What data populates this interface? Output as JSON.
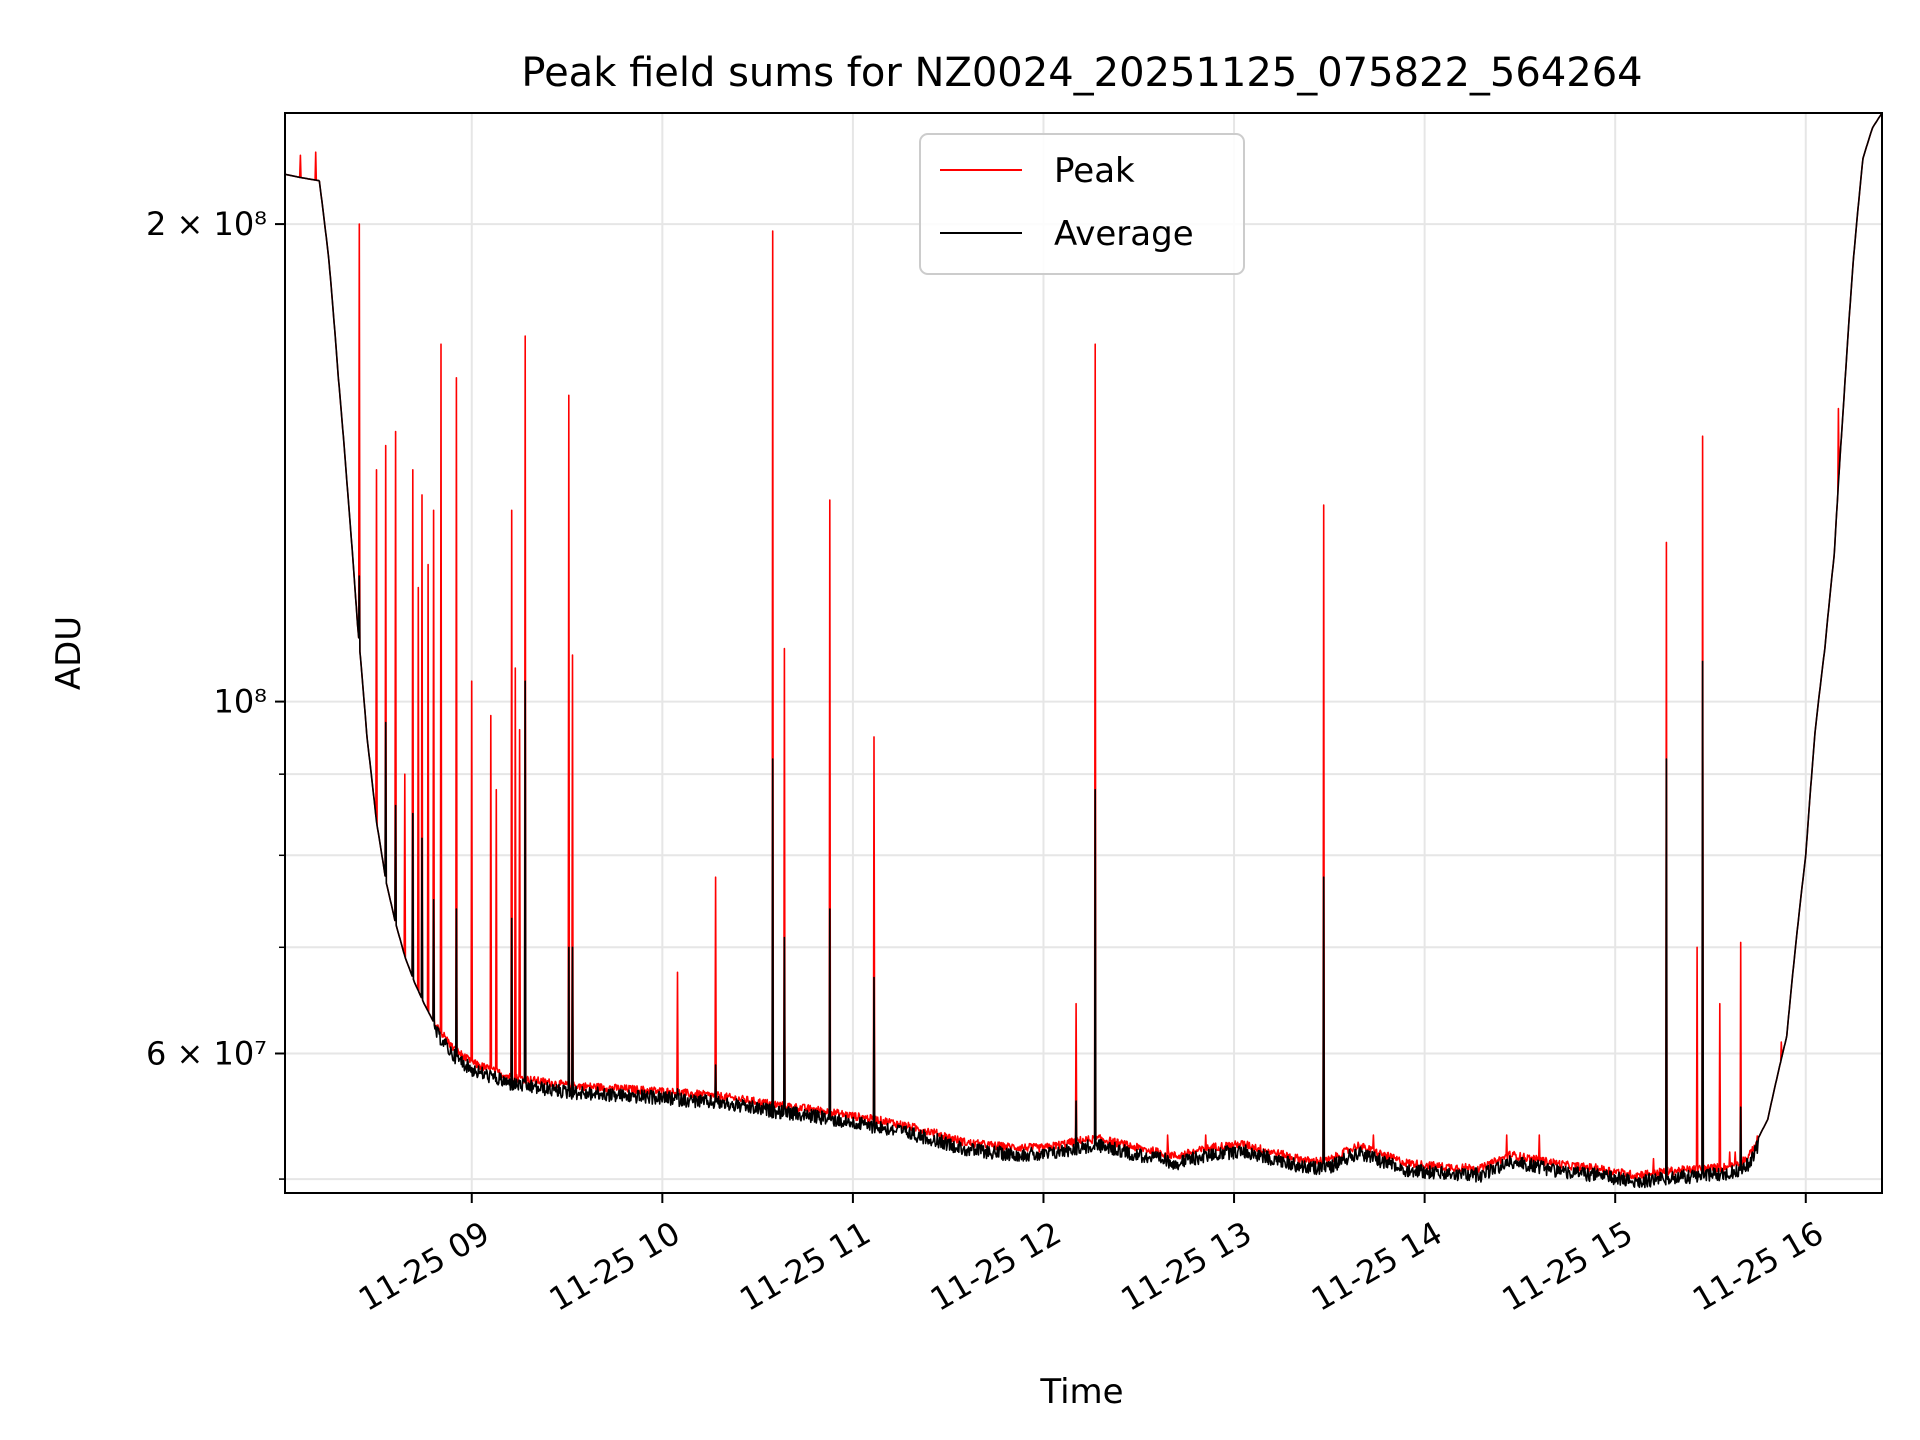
{
  "chart_data": {
    "type": "line",
    "title": "Peak field sums for NZ0024_20251125_075822_564264",
    "xlabel": "Time",
    "ylabel": "ADU",
    "yscale": "log",
    "xlim": [
      8.02,
      16.4
    ],
    "ylim": [
      49000000,
      235000000
    ],
    "grid": true,
    "legend_position": "upper-center",
    "x_ticks": [
      {
        "value": 9,
        "label": "11-25 09"
      },
      {
        "value": 10,
        "label": "11-25 10"
      },
      {
        "value": 11,
        "label": "11-25 11"
      },
      {
        "value": 12,
        "label": "11-25 12"
      },
      {
        "value": 13,
        "label": "11-25 13"
      },
      {
        "value": 14,
        "label": "11-25 14"
      },
      {
        "value": 15,
        "label": "11-25 15"
      },
      {
        "value": 16,
        "label": "11-25 16"
      }
    ],
    "y_major_ticks": [
      {
        "value": 200000000,
        "label": "2 × 10⁸"
      },
      {
        "value": 100000000,
        "label": "10⁸"
      },
      {
        "value": 60000000,
        "label": "6 × 10⁷"
      }
    ],
    "y_minor_ticks": [
      50000000,
      70000000,
      80000000,
      90000000
    ],
    "series": [
      {
        "name": "Peak",
        "color": "#ff0000",
        "spikes": [
          [
            8.1,
            221000000
          ],
          [
            8.18,
            222000000
          ],
          [
            8.3,
            155000000
          ],
          [
            8.41,
            200000000
          ],
          [
            8.5,
            140000000
          ],
          [
            8.55,
            145000000
          ],
          [
            8.6,
            148000000
          ],
          [
            8.65,
            90000000
          ],
          [
            8.69,
            140000000
          ],
          [
            8.72,
            118000000
          ],
          [
            8.74,
            135000000
          ],
          [
            8.77,
            122000000
          ],
          [
            8.8,
            132000000
          ],
          [
            8.84,
            168000000
          ],
          [
            8.92,
            160000000
          ],
          [
            9.0,
            103000000
          ],
          [
            9.1,
            98000000
          ],
          [
            9.13,
            88000000
          ],
          [
            9.21,
            132000000
          ],
          [
            9.23,
            105000000
          ],
          [
            9.25,
            96000000
          ],
          [
            9.28,
            170000000
          ],
          [
            9.51,
            156000000
          ],
          [
            9.53,
            107000000
          ],
          [
            10.08,
            67500000
          ],
          [
            10.28,
            77500000
          ],
          [
            10.58,
            198000000
          ],
          [
            10.64,
            108000000
          ],
          [
            10.88,
            134000000
          ],
          [
            11.11,
            95000000
          ],
          [
            11.38,
            53500000
          ],
          [
            11.41,
            53500000
          ],
          [
            12.17,
            64500000
          ],
          [
            12.27,
            168000000
          ],
          [
            12.65,
            53300000
          ],
          [
            12.85,
            53300000
          ],
          [
            13.47,
            133000000
          ],
          [
            13.73,
            53300000
          ],
          [
            14.43,
            53300000
          ],
          [
            14.6,
            53300000
          ],
          [
            15.2,
            51500000
          ],
          [
            15.27,
            126000000
          ],
          [
            15.43,
            70000000
          ],
          [
            15.46,
            147000000
          ],
          [
            15.55,
            64500000
          ],
          [
            15.6,
            52000000
          ],
          [
            15.63,
            52000000
          ],
          [
            15.66,
            70500000
          ],
          [
            15.87,
            61000000
          ],
          [
            16.17,
            153000000
          ]
        ]
      },
      {
        "name": "Average",
        "color": "#000000",
        "spikes": [
          [
            8.41,
            120000000
          ],
          [
            8.55,
            97000000
          ],
          [
            8.6,
            86000000
          ],
          [
            8.69,
            85000000
          ],
          [
            8.74,
            82000000
          ],
          [
            8.8,
            75000000
          ],
          [
            8.92,
            74000000
          ],
          [
            9.21,
            73000000
          ],
          [
            9.28,
            103000000
          ],
          [
            9.51,
            70000000
          ],
          [
            9.53,
            70000000
          ],
          [
            10.08,
            57000000
          ],
          [
            10.28,
            59000000
          ],
          [
            10.58,
            92000000
          ],
          [
            10.64,
            71000000
          ],
          [
            10.88,
            74000000
          ],
          [
            11.11,
            67000000
          ],
          [
            12.17,
            56000000
          ],
          [
            12.27,
            88000000
          ],
          [
            13.47,
            77500000
          ],
          [
            15.27,
            92000000
          ],
          [
            15.46,
            106000000
          ],
          [
            15.66,
            55500000
          ]
        ]
      }
    ],
    "baseline": [
      [
        8.02,
        215000000
      ],
      [
        8.1,
        214000000
      ],
      [
        8.2,
        213000000
      ],
      [
        8.25,
        190000000
      ],
      [
        8.3,
        160000000
      ],
      [
        8.35,
        135000000
      ],
      [
        8.4,
        112000000
      ],
      [
        8.45,
        95000000
      ],
      [
        8.5,
        84000000
      ],
      [
        8.55,
        77000000
      ],
      [
        8.6,
        72500000
      ],
      [
        8.65,
        69000000
      ],
      [
        8.7,
        66500000
      ],
      [
        8.75,
        64500000
      ],
      [
        8.8,
        62800000
      ],
      [
        8.9,
        60500000
      ],
      [
        9.0,
        59200000
      ],
      [
        9.2,
        58000000
      ],
      [
        9.5,
        57300000
      ],
      [
        9.8,
        57000000
      ],
      [
        10.0,
        56800000
      ],
      [
        10.3,
        56400000
      ],
      [
        10.6,
        55700000
      ],
      [
        10.8,
        55300000
      ],
      [
        11.0,
        54800000
      ],
      [
        11.2,
        54300000
      ],
      [
        11.4,
        53600000
      ],
      [
        11.6,
        52700000
      ],
      [
        11.8,
        52400000
      ],
      [
        12.0,
        52300000
      ],
      [
        12.2,
        52900000
      ],
      [
        12.3,
        53000000
      ],
      [
        12.5,
        52300000
      ],
      [
        12.7,
        51700000
      ],
      [
        12.9,
        52400000
      ],
      [
        13.05,
        52600000
      ],
      [
        13.2,
        52000000
      ],
      [
        13.4,
        51300000
      ],
      [
        13.5,
        51400000
      ],
      [
        13.65,
        52500000
      ],
      [
        13.8,
        51700000
      ],
      [
        13.9,
        51200000
      ],
      [
        14.1,
        50900000
      ],
      [
        14.3,
        50800000
      ],
      [
        14.45,
        51800000
      ],
      [
        14.6,
        51400000
      ],
      [
        14.75,
        51000000
      ],
      [
        14.9,
        50800000
      ],
      [
        15.1,
        50300000
      ],
      [
        15.3,
        50600000
      ],
      [
        15.5,
        50800000
      ],
      [
        15.6,
        50900000
      ],
      [
        15.7,
        51600000
      ],
      [
        15.8,
        54500000
      ],
      [
        15.9,
        61500000
      ],
      [
        16.0,
        80000000
      ],
      [
        16.05,
        96000000
      ],
      [
        16.1,
        108000000
      ],
      [
        16.15,
        124000000
      ],
      [
        16.2,
        155000000
      ],
      [
        16.25,
        190000000
      ],
      [
        16.3,
        220000000
      ],
      [
        16.35,
        230000000
      ],
      [
        16.4,
        235000000
      ]
    ]
  }
}
